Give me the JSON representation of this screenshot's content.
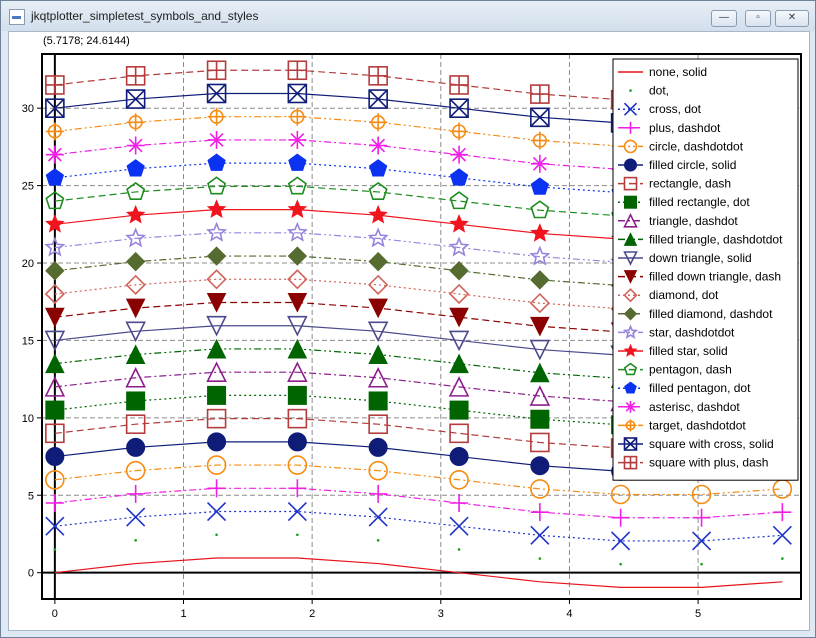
{
  "window": {
    "title": "jkqtplotter_simpletest_symbols_and_styles",
    "minimize_glyph": "—",
    "maximize_glyph": "▫",
    "close_glyph": "✕"
  },
  "coordinate_readout": "(5.7178; 24.6144)",
  "chart_data": {
    "type": "line",
    "title": "",
    "xlabel": "",
    "ylabel": "",
    "xlim": [
      -0.1,
      5.8
    ],
    "ylim": [
      -1.7,
      33.5
    ],
    "xticks": [
      0,
      1,
      2,
      3,
      4,
      5
    ],
    "yticks": [
      0,
      5,
      10,
      15,
      20,
      25,
      30
    ],
    "grid": true,
    "grid_style": "dashed",
    "legend_position": "top-right",
    "x": [
      0,
      0.628,
      1.257,
      1.885,
      2.513,
      3.142,
      3.77,
      4.398,
      5.027,
      5.655
    ],
    "baseline_wave": [
      0,
      0.59,
      0.95,
      0.95,
      0.59,
      0,
      -0.59,
      -0.95,
      -0.95,
      -0.59
    ],
    "series_offsets": [
      0,
      1.5,
      3,
      4.5,
      6,
      7.5,
      9,
      10.5,
      12,
      13.5,
      15,
      16.5,
      18,
      19.5,
      21,
      22.5,
      24,
      25.5,
      27,
      28.5,
      30,
      31.5
    ],
    "series": [
      {
        "name": "none, solid",
        "symbol": "none",
        "line": "solid",
        "color": "#e8141c"
      },
      {
        "name": "dot,",
        "symbol": "dot",
        "line": "none",
        "color": "#19a019"
      },
      {
        "name": "cross, dot",
        "symbol": "cross",
        "line": "dot",
        "color": "#1e32c8"
      },
      {
        "name": "plus, dashdot",
        "symbol": "plus",
        "line": "dashdot",
        "color": "#f01ee6"
      },
      {
        "name": "circle, dashdotdot",
        "symbol": "circle",
        "line": "dashdotdot",
        "color": "#f58c14"
      },
      {
        "name": "filled circle, solid",
        "symbol": "filled circle",
        "line": "solid",
        "color": "#0f1c78"
      },
      {
        "name": "rectangle, dash",
        "symbol": "rectangle",
        "line": "dash",
        "color": "#b43c3c"
      },
      {
        "name": "filled rectangle, dot",
        "symbol": "filled rectangle",
        "line": "dot",
        "color": "#006400"
      },
      {
        "name": "triangle, dashdot",
        "symbol": "triangle",
        "line": "dashdot",
        "color": "#8c1e8c"
      },
      {
        "name": "filled triangle, dashdotdot",
        "symbol": "filled triangle",
        "line": "dashdotdot",
        "color": "#006400"
      },
      {
        "name": "down triangle, solid",
        "symbol": "down triangle",
        "line": "solid",
        "color": "#4a4a8c"
      },
      {
        "name": "filled down triangle, dash",
        "symbol": "filled down triangle",
        "line": "dash",
        "color": "#8b0000"
      },
      {
        "name": "diamond, dot",
        "symbol": "diamond",
        "line": "dot",
        "color": "#d0645a"
      },
      {
        "name": "filled diamond, dashdot",
        "symbol": "filled diamond",
        "line": "dashdot",
        "color": "#556b2f"
      },
      {
        "name": "star, dashdotdot",
        "symbol": "star",
        "line": "dashdotdot",
        "color": "#9a82dc"
      },
      {
        "name": "filled star, solid",
        "symbol": "filled star",
        "line": "solid",
        "color": "#f0141e"
      },
      {
        "name": "pentagon, dash",
        "symbol": "pentagon",
        "line": "dash",
        "color": "#1e8c1e"
      },
      {
        "name": "filled pentagon, dot",
        "symbol": "filled pentagon",
        "line": "dot",
        "color": "#0a32f0"
      },
      {
        "name": "asterisc, dashdot",
        "symbol": "asterisc",
        "line": "dashdot",
        "color": "#f01ee6"
      },
      {
        "name": "target, dashdotdot",
        "symbol": "target",
        "line": "dashdotdot",
        "color": "#f58c14"
      },
      {
        "name": "square with cross, solid",
        "symbol": "square with cross",
        "line": "solid",
        "color": "#0f1c78"
      },
      {
        "name": "square with plus, dash",
        "symbol": "square with plus",
        "line": "dash",
        "color": "#b43c3c"
      }
    ]
  }
}
